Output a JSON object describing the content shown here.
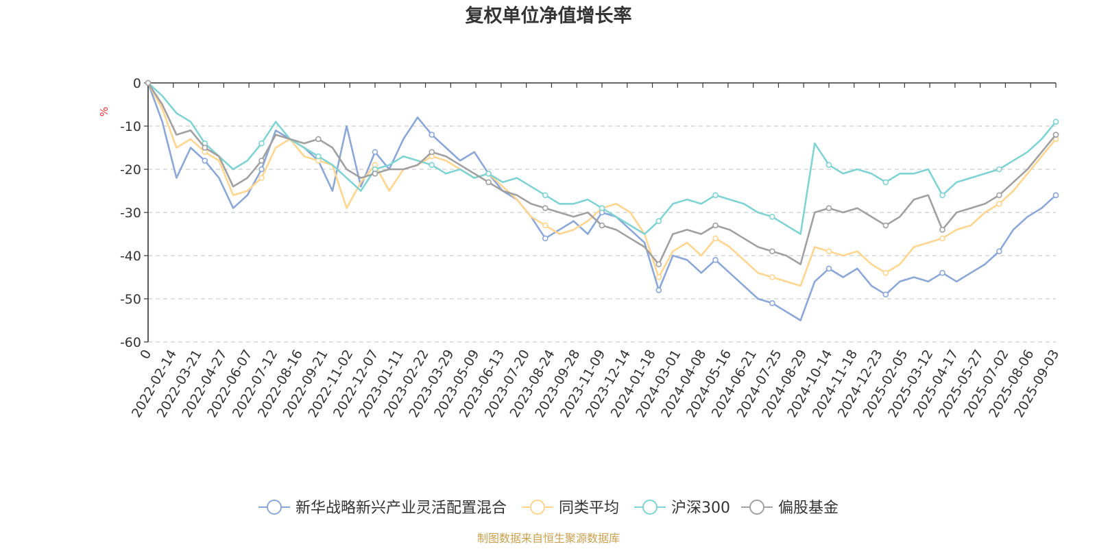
{
  "chart_data": {
    "type": "line",
    "title": "复权单位净值增长率",
    "ylabel": "%",
    "ylim": [
      -60,
      0
    ],
    "yticks": [
      0,
      -10,
      -20,
      -30,
      -40,
      -50,
      -60
    ],
    "grid": true,
    "legend_position": "bottom",
    "x_tick_labels": [
      "0",
      "2022-02-14",
      "2022-03-21",
      "2022-04-27",
      "2022-06-07",
      "2022-07-12",
      "2022-08-16",
      "2022-09-21",
      "2022-11-02",
      "2022-12-07",
      "2023-01-11",
      "2023-02-22",
      "2023-03-29",
      "2023-05-09",
      "2023-06-13",
      "2023-07-20",
      "2023-08-24",
      "2023-09-28",
      "2023-11-09",
      "2023-12-14",
      "2024-01-18",
      "2024-03-01",
      "2024-04-08",
      "2024-05-16",
      "2024-06-21",
      "2024-07-25",
      "2024-08-29",
      "2024-10-14",
      "2024-11-18",
      "2024-12-23",
      "2025-02-05",
      "2025-03-12",
      "2025-04-17",
      "2025-05-27",
      "2025-07-02",
      "2025-08-06",
      "2025-09-03"
    ],
    "series": [
      {
        "name": "新华战略新兴产业灵活配置混合",
        "color": "#8ba7d8",
        "values": [
          0,
          -9,
          -22,
          -15,
          -18,
          -22,
          -29,
          -26,
          -20,
          -11,
          -13,
          -15,
          -18,
          -25,
          -10,
          -24,
          -16,
          -20,
          -13,
          -8,
          -12,
          -15,
          -18,
          -16,
          -21,
          -25,
          -27,
          -31,
          -36,
          -34,
          -32,
          -35,
          -30,
          -31,
          -34,
          -37,
          -48,
          -40,
          -41,
          -44,
          -41,
          -44,
          -47,
          -50,
          -51,
          -53,
          -55,
          -46,
          -43,
          -45,
          -43,
          -47,
          -49,
          -46,
          -45,
          -46,
          -44,
          -46,
          -44,
          -42,
          -39,
          -34,
          -31,
          -29,
          -26
        ]
      },
      {
        "name": "同类平均",
        "color": "#ffd58f",
        "values": [
          0,
          -6,
          -15,
          -13,
          -16,
          -18,
          -26,
          -25,
          -22,
          -15,
          -13,
          -17,
          -18,
          -19,
          -29,
          -23,
          -19,
          -25,
          -20,
          -19,
          -17,
          -18,
          -20,
          -22,
          -21,
          -24,
          -27,
          -31,
          -33,
          -35,
          -34,
          -32,
          -29,
          -28,
          -30,
          -35,
          -45,
          -39,
          -37,
          -40,
          -36,
          -38,
          -41,
          -44,
          -45,
          -46,
          -47,
          -38,
          -39,
          -40,
          -39,
          -42,
          -44,
          -42,
          -38,
          -37,
          -36,
          -34,
          -33,
          -30,
          -28,
          -25,
          -21,
          -17,
          -13
        ]
      },
      {
        "name": "沪深300",
        "color": "#7fd3d3",
        "values": [
          0,
          -3,
          -7,
          -9,
          -14,
          -17,
          -20,
          -18,
          -14,
          -9,
          -13,
          -15,
          -17,
          -19,
          -22,
          -25,
          -20,
          -19,
          -17,
          -18,
          -19,
          -21,
          -20,
          -22,
          -21,
          -23,
          -22,
          -24,
          -26,
          -28,
          -28,
          -27,
          -29,
          -31,
          -33,
          -35,
          -32,
          -28,
          -27,
          -28,
          -26,
          -27,
          -28,
          -30,
          -31,
          -33,
          -35,
          -14,
          -19,
          -21,
          -20,
          -21,
          -23,
          -21,
          -21,
          -20,
          -26,
          -23,
          -22,
          -21,
          -20,
          -18,
          -16,
          -13,
          -9
        ]
      },
      {
        "name": "偏股基金",
        "color": "#a0a0a0",
        "values": [
          0,
          -5,
          -12,
          -11,
          -15,
          -17,
          -24,
          -22,
          -18,
          -12,
          -13,
          -14,
          -13,
          -15,
          -20,
          -22,
          -21,
          -20,
          -20,
          -19,
          -16,
          -17,
          -19,
          -21,
          -23,
          -25,
          -26,
          -28,
          -29,
          -30,
          -31,
          -30,
          -33,
          -34,
          -36,
          -38,
          -42,
          -35,
          -34,
          -35,
          -33,
          -34,
          -36,
          -38,
          -39,
          -40,
          -42,
          -30,
          -29,
          -30,
          -29,
          -31,
          -33,
          -31,
          -27,
          -26,
          -34,
          -30,
          -29,
          -28,
          -26,
          -23,
          -20,
          -16,
          -12
        ]
      }
    ]
  },
  "watermark": "制图数据来自恒生聚源数据库"
}
